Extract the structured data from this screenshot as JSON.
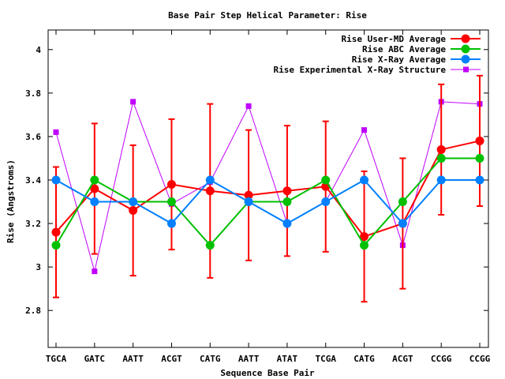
{
  "chart_data": {
    "type": "line",
    "title": "Base Pair Step Helical Parameter: Rise",
    "xlabel": "Sequence Base Pair",
    "ylabel": "Rise (Angstroms)",
    "categories": [
      "TGCA",
      "GATC",
      "AATT",
      "ACGT",
      "CATG",
      "AATT",
      "ATAT",
      "TCGA",
      "CATG",
      "ACGT",
      "CCGG",
      "CCGG"
    ],
    "ylim": [
      2.63,
      4.09
    ],
    "yticks": [
      2.8,
      3,
      3.2,
      3.4,
      3.6,
      3.8,
      4
    ],
    "ytick_labels": [
      "2.8",
      "3",
      "3.2",
      "3.4",
      "3.6",
      "3.8",
      "4"
    ],
    "grid": false,
    "legend_position": "top-right",
    "series": [
      {
        "name": "Rise User-MD Average",
        "color": "#ff0000",
        "marker": "circle",
        "values": [
          3.16,
          3.36,
          3.26,
          3.38,
          3.35,
          3.33,
          3.35,
          3.37,
          3.14,
          3.2,
          3.54,
          3.58
        ],
        "error": [
          0.3,
          0.3,
          0.3,
          0.3,
          0.4,
          0.3,
          0.3,
          0.3,
          0.3,
          0.3,
          0.3,
          0.3
        ]
      },
      {
        "name": "Rise ABC Average",
        "color": "#00c000",
        "marker": "circle",
        "values": [
          3.1,
          3.4,
          3.3,
          3.3,
          3.1,
          3.3,
          3.3,
          3.4,
          3.1,
          3.3,
          3.5,
          3.5
        ]
      },
      {
        "name": "Rise X-Ray Average",
        "color": "#0080ff",
        "marker": "circle",
        "values": [
          3.4,
          3.3,
          3.3,
          3.2,
          3.4,
          3.3,
          3.2,
          3.3,
          3.4,
          3.2,
          3.4,
          3.4
        ]
      },
      {
        "name": "Rise Experimental X-Ray Structure",
        "color": "#c000ff",
        "marker": "square",
        "values": [
          3.62,
          2.98,
          3.76,
          3.29,
          3.39,
          3.74,
          3.2,
          3.3,
          3.63,
          3.1,
          3.76,
          3.75
        ]
      }
    ]
  }
}
